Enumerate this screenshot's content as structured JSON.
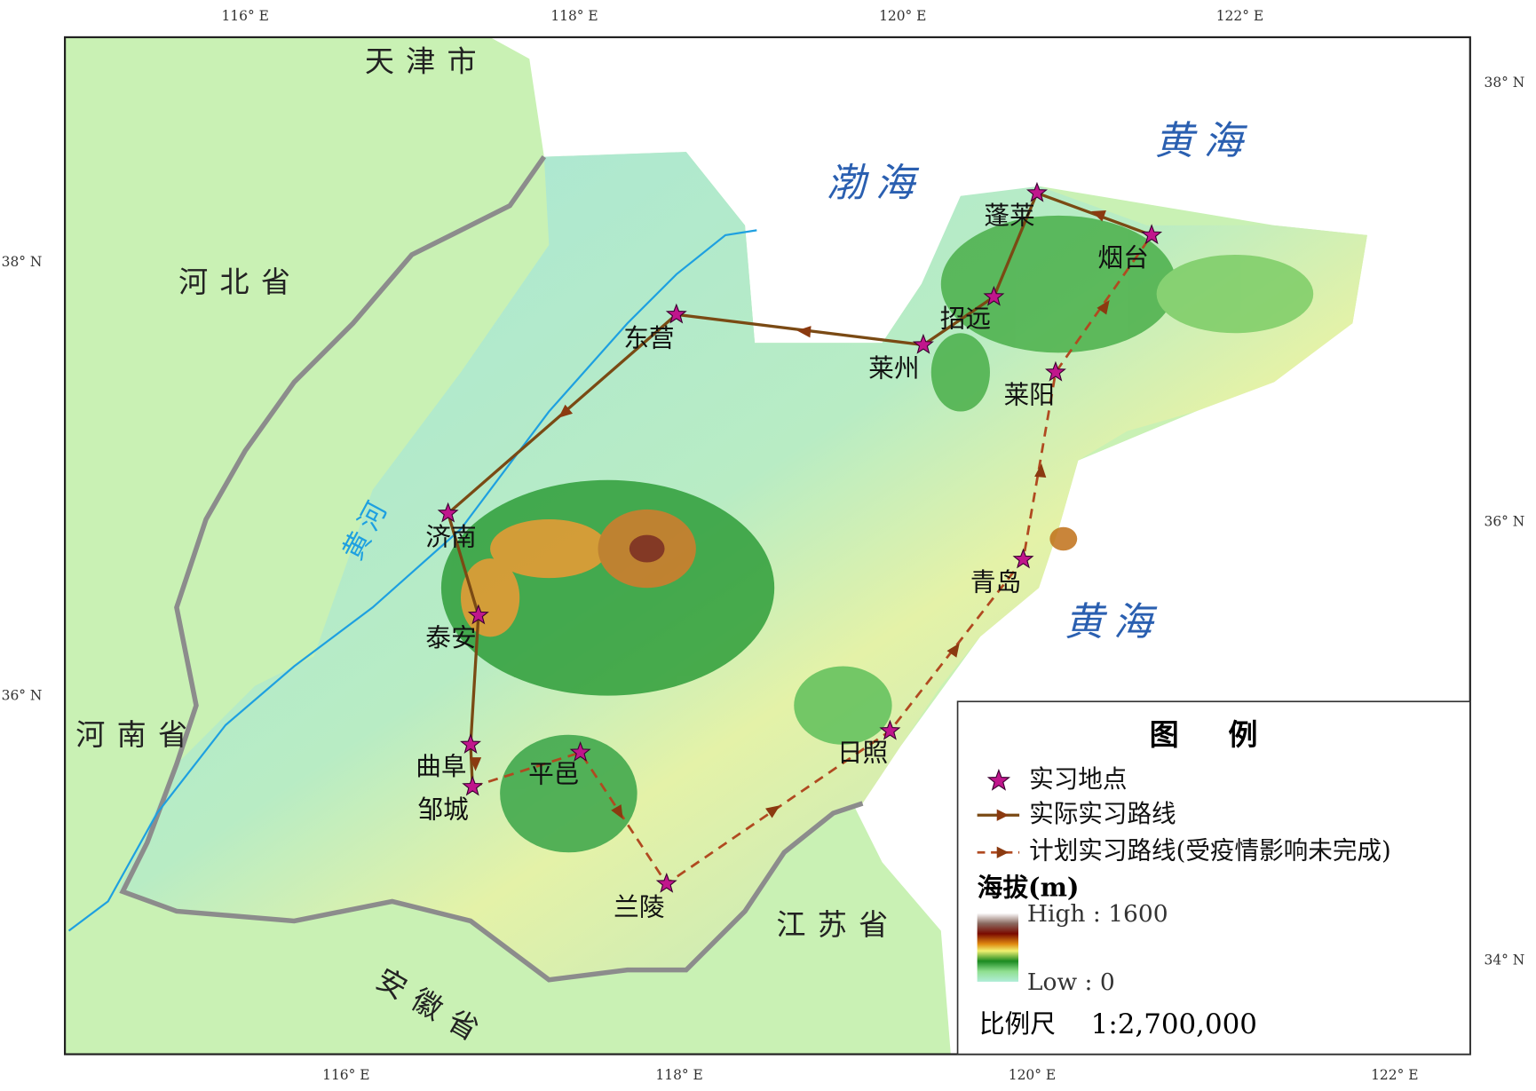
{
  "map": {
    "ticks": {
      "top": [
        "116° E",
        "118° E",
        "120° E",
        "122° E"
      ],
      "bottom": [
        "116° E",
        "118° E",
        "120° E",
        "122° E"
      ],
      "left": [
        "38° N",
        "36° N"
      ],
      "right": [
        "38° N",
        "36° N",
        "34° N"
      ]
    },
    "regions": [
      "天津市",
      "河北省",
      "河南省",
      "江苏省",
      "安徽省"
    ],
    "seas": [
      "渤海",
      "黄海",
      "黄海"
    ],
    "river": "黄河",
    "sites": [
      "东营",
      "莱州",
      "招远",
      "蓬莱",
      "烟台",
      "莱阳",
      "青岛",
      "日照",
      "兰陵",
      "平邑",
      "邹城",
      "曲阜",
      "泰安",
      "济南"
    ],
    "legend": {
      "title": "图 例",
      "items": [
        "实习地点",
        "实际实习路线",
        "计划实习路线(受疫情影响未完成)"
      ],
      "elevation_title": "海拔(m)",
      "high": "High : 1600",
      "low": "Low : 0",
      "scale_label": "比例尺",
      "scale": "1:2,700,000"
    }
  }
}
